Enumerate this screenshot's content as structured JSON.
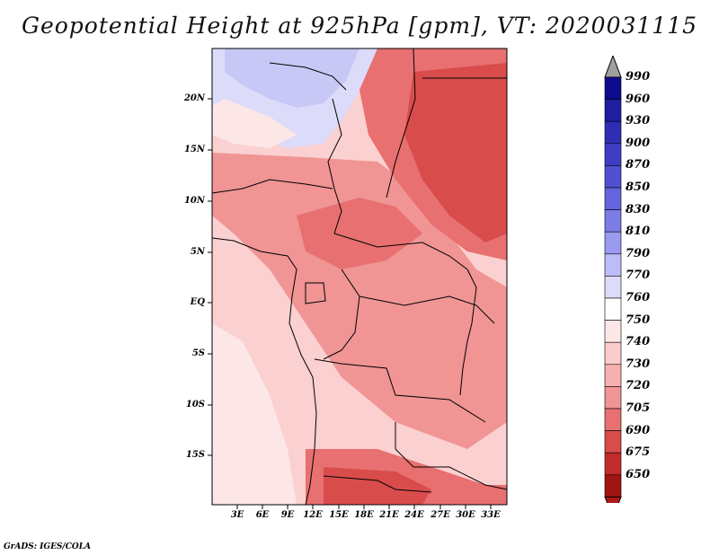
{
  "title": "Geopotential Height at 925hPa [gpm], VT: 2020031115",
  "credit": "GrADS: IGES/COLA",
  "lat_labels": [
    "20N",
    "15N",
    "10N",
    "5N",
    "EQ",
    "5S",
    "10S",
    "15S"
  ],
  "lon_labels": [
    "3E",
    "6E",
    "9E",
    "12E",
    "15E",
    "18E",
    "21E",
    "24E",
    "27E",
    "30E",
    "33E"
  ],
  "colorbar": {
    "labels": [
      "990",
      "960",
      "930",
      "900",
      "870",
      "850",
      "830",
      "810",
      "790",
      "770",
      "760",
      "750",
      "740",
      "730",
      "720",
      "705",
      "690",
      "675",
      "650"
    ],
    "colors": [
      "#a0a0a0",
      "#0c0c8c",
      "#1e1ea0",
      "#2e2eb4",
      "#3e3ec4",
      "#5050d2",
      "#6464dc",
      "#7c7ce6",
      "#9a9af0",
      "#bcbcf6",
      "#dcdcfa",
      "#ffffff",
      "#fde6e6",
      "#fbcccc",
      "#f7b0b0",
      "#f09494",
      "#e87070",
      "#d94c4c",
      "#c22c2c",
      "#a01414",
      "#b01818"
    ]
  }
}
